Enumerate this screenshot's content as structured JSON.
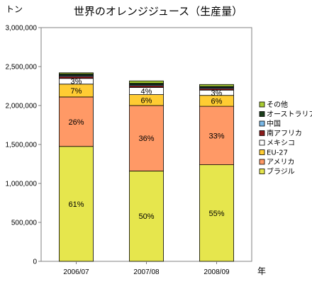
{
  "chart_data": {
    "type": "bar",
    "stacked": true,
    "title": "世界のオレンジジュース（生産量）",
    "ylabel": "トン",
    "xlabel": "年",
    "categories": [
      "2006/07",
      "2007/08",
      "2008/09"
    ],
    "ylim": [
      0,
      3000000
    ],
    "yticks": [
      0,
      500000,
      1000000,
      1500000,
      2000000,
      2500000,
      3000000
    ],
    "ytick_labels": [
      "0",
      "500,000",
      "1,000,000",
      "1,500,000",
      "2,000,000",
      "2,500,000",
      "3,000,000"
    ],
    "grid": false,
    "legend_position": "right",
    "series": [
      {
        "name": "ブラジル",
        "color": "#e6e64d",
        "values": [
          1475000,
          1160000,
          1240000
        ],
        "labels": [
          "61%",
          "50%",
          "55%"
        ]
      },
      {
        "name": "アメリカ",
        "color": "#ff9966",
        "values": [
          635000,
          840000,
          750000
        ],
        "labels": [
          "26%",
          "36%",
          "33%"
        ]
      },
      {
        "name": "EU-27",
        "color": "#ffcc33",
        "values": [
          165000,
          140000,
          140000
        ],
        "labels": [
          "7%",
          "6%",
          "6%"
        ]
      },
      {
        "name": "メキシコ",
        "color": "#ffffff",
        "values": [
          73000,
          92000,
          68000
        ],
        "labels": [
          "3%",
          "4%",
          "3%"
        ]
      },
      {
        "name": "南アフリカ",
        "color": "#8b1a1a",
        "values": [
          25000,
          22000,
          20000
        ],
        "labels": [
          "",
          "",
          ""
        ]
      },
      {
        "name": "中国",
        "color": "#7ab8e6",
        "values": [
          12000,
          12000,
          12000
        ],
        "labels": [
          "",
          "",
          ""
        ]
      },
      {
        "name": "オーストラリア",
        "color": "#1a3d1a",
        "values": [
          20000,
          20000,
          15000
        ],
        "labels": [
          "",
          "",
          ""
        ]
      },
      {
        "name": "その他",
        "color": "#a8cc33",
        "values": [
          15000,
          30000,
          25000
        ],
        "labels": [
          "",
          "",
          ""
        ]
      }
    ]
  }
}
